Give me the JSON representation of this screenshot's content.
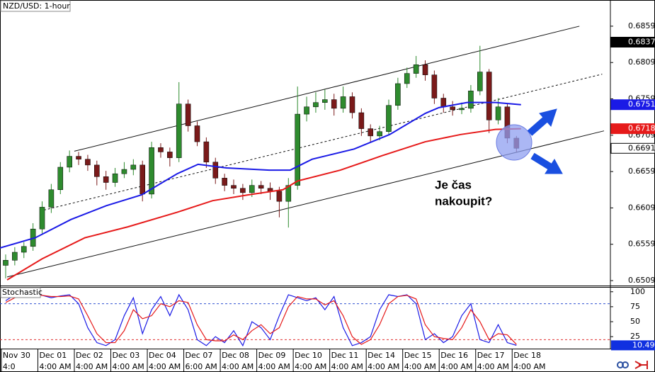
{
  "chart_data": [
    {
      "type": "candlestick",
      "title": "NZD/USD: 1-hour",
      "up_color": "#2e8b2e",
      "down_color": "#7a1a1a",
      "open": [
        0.653,
        0.6537,
        0.6548,
        0.6556,
        0.658,
        0.661,
        0.6634,
        0.6665,
        0.668,
        0.6676,
        0.6668,
        0.6652,
        0.6644,
        0.6656,
        0.6662,
        0.6668,
        0.6628,
        0.6692,
        0.6686,
        0.6678,
        0.6752,
        0.6722,
        0.67,
        0.6672,
        0.665,
        0.664,
        0.6636,
        0.663,
        0.664,
        0.6636,
        0.6632,
        0.6618,
        0.664,
        0.6738,
        0.6748,
        0.6754,
        0.6758,
        0.6746,
        0.6762,
        0.674,
        0.6718,
        0.6708,
        0.6714,
        0.675,
        0.678,
        0.6794,
        0.6806,
        0.6792,
        0.676,
        0.6748,
        0.6744,
        0.6746,
        0.677,
        0.6796,
        0.673,
        0.6748,
        0.6705
      ],
      "high": [
        0.6545,
        0.6555,
        0.6562,
        0.6588,
        0.6618,
        0.6642,
        0.6672,
        0.6688,
        0.6686,
        0.6682,
        0.6674,
        0.666,
        0.6664,
        0.6672,
        0.6676,
        0.6674,
        0.67,
        0.6698,
        0.6692,
        0.6782,
        0.6758,
        0.6728,
        0.6706,
        0.6678,
        0.6656,
        0.6648,
        0.6642,
        0.6648,
        0.6646,
        0.6644,
        0.6638,
        0.665,
        0.6776,
        0.6762,
        0.6768,
        0.6772,
        0.6766,
        0.6776,
        0.6768,
        0.6746,
        0.6724,
        0.6722,
        0.6758,
        0.6788,
        0.6802,
        0.6818,
        0.6812,
        0.6798,
        0.6766,
        0.6756,
        0.6754,
        0.6778,
        0.6832,
        0.68,
        0.676,
        0.6752,
        0.6708
      ],
      "low": [
        0.6512,
        0.653,
        0.654,
        0.655,
        0.6574,
        0.6602,
        0.6628,
        0.6658,
        0.6668,
        0.666,
        0.664,
        0.6634,
        0.6638,
        0.665,
        0.6654,
        0.6618,
        0.6622,
        0.6678,
        0.6666,
        0.6672,
        0.6714,
        0.6694,
        0.6664,
        0.6642,
        0.6632,
        0.6628,
        0.662,
        0.6624,
        0.6628,
        0.662,
        0.6596,
        0.6582,
        0.6634,
        0.6728,
        0.674,
        0.6744,
        0.6736,
        0.674,
        0.6732,
        0.6708,
        0.67,
        0.6702,
        0.671,
        0.6744,
        0.6774,
        0.6788,
        0.6784,
        0.6752,
        0.674,
        0.6736,
        0.6738,
        0.674,
        0.6764,
        0.6712,
        0.6724,
        0.6698,
        0.6686
      ],
      "close": [
        0.6537,
        0.6548,
        0.6556,
        0.658,
        0.661,
        0.6634,
        0.6665,
        0.668,
        0.6676,
        0.6668,
        0.6652,
        0.6644,
        0.6656,
        0.6662,
        0.6668,
        0.6628,
        0.6692,
        0.6686,
        0.6678,
        0.6752,
        0.6722,
        0.67,
        0.6672,
        0.665,
        0.664,
        0.6636,
        0.663,
        0.664,
        0.6636,
        0.6632,
        0.6618,
        0.664,
        0.6738,
        0.6748,
        0.6754,
        0.6758,
        0.6746,
        0.6762,
        0.674,
        0.6718,
        0.6708,
        0.6714,
        0.675,
        0.678,
        0.6794,
        0.6806,
        0.6792,
        0.676,
        0.6748,
        0.6744,
        0.6746,
        0.677,
        0.6796,
        0.673,
        0.6748,
        0.6705,
        0.6691
      ],
      "series": [
        {
          "color": "#1a1ae6",
          "x": [
            -0.62,
            3.26,
            7.15,
            11.03,
            14.91,
            18.8,
            21.1,
            24.2,
            28.9,
            31.2,
            33.6,
            38.2,
            42.1,
            46.0,
            47.5,
            50.6,
            53.7,
            56.5
          ],
          "values": [
            0.6554,
            0.6568,
            0.6593,
            0.6612,
            0.6627,
            0.6656,
            0.6669,
            0.6664,
            0.6661,
            0.6661,
            0.6676,
            0.669,
            0.671,
            0.6739,
            0.6747,
            0.6754,
            0.6754,
            0.6751
          ]
        },
        {
          "color": "#e61a1a",
          "x": [
            0.16,
            4.0,
            8.7,
            13.4,
            18.8,
            22.7,
            26.6,
            30.4,
            32.0,
            36.7,
            41.3,
            46.0,
            49.9,
            53.7,
            56.5
          ],
          "values": [
            0.651,
            0.6539,
            0.6568,
            0.6583,
            0.6603,
            0.6619,
            0.6627,
            0.6634,
            0.6646,
            0.6661,
            0.6681,
            0.67,
            0.671,
            0.6717,
            0.6718
          ]
        }
      ],
      "trendlines": [
        {
          "x": [
            7.53,
            62.9
          ],
          "y": [
            0.6687,
            0.6859
          ],
          "dashed": false
        },
        {
          "x": [
            4.19,
            65.4
          ],
          "y": [
            0.6606,
            0.6793
          ],
          "dashed": true
        },
        {
          "x": [
            0.16,
            65.6
          ],
          "y": [
            0.6514,
            0.6715
          ],
          "dashed": false
        }
      ],
      "xlim": [
        -0.62,
        66.3
      ],
      "ylim": [
        0.65022,
        0.6895
      ],
      "yticks": [
        0.6859,
        0.6809,
        0.6759,
        0.6709,
        0.6659,
        0.6609,
        0.6559,
        0.6509
      ],
      "xticks": [
        {
          "value": -0.47,
          "label": "Nov 30"
        },
        {
          "value": 3.53,
          "label": "Dec 01"
        },
        {
          "value": 7.53,
          "label": "Dec 02"
        },
        {
          "value": 11.53,
          "label": "Dec 03"
        },
        {
          "value": 15.53,
          "label": "Dec 04"
        },
        {
          "value": 19.53,
          "label": "Dec 07"
        },
        {
          "value": 23.53,
          "label": "Dec 08"
        },
        {
          "value": 27.53,
          "label": "Dec 09"
        },
        {
          "value": 31.53,
          "label": "Dec 10"
        },
        {
          "value": 35.53,
          "label": "Dec 11"
        },
        {
          "value": 39.53,
          "label": "Dec 14"
        },
        {
          "value": 43.53,
          "label": "Dec 15"
        },
        {
          "value": 47.53,
          "label": "Dec 16"
        },
        {
          "value": 51.53,
          "label": "Dec 17"
        },
        {
          "value": 55.53,
          "label": "Dec 18"
        }
      ],
      "time_labels": [
        "4:0",
        "4:00 AM",
        "4:00 AM",
        "4:00 AM",
        "4:00 AM",
        "6:00 AM",
        "4:00 AM",
        "4:00 AM",
        "4:00 AM",
        "4:00 AM",
        "4:00 AM",
        "4:00 AM",
        "4:00 AM",
        "4:00 AM",
        "4:00 AM"
      ],
      "price_markers": [
        {
          "value": 0.6837,
          "color": "#000000",
          "text_color": "#ffffff"
        },
        {
          "value": 0.6751,
          "color": "#1a1ae6",
          "text_color": "#ffffff"
        },
        {
          "value": 0.6718,
          "color": "#e61a1a",
          "text_color": "#ffffff"
        },
        {
          "value": 0.6691,
          "color": "#ffffff",
          "text_color": "#000000"
        }
      ],
      "annotation": [
        "Je čas",
        "nakoupit?"
      ]
    },
    {
      "type": "line",
      "title": "Stochastic",
      "series": [
        {
          "color": "#1a1ae6",
          "values": [
            85,
            95,
            92,
            95,
            94,
            90,
            93,
            95,
            80,
            40,
            15,
            10,
            20,
            60,
            90,
            30,
            70,
            92,
            60,
            95,
            70,
            20,
            10,
            25,
            15,
            35,
            10,
            50,
            40,
            20,
            60,
            95,
            90,
            85,
            90,
            70,
            92,
            40,
            10,
            15,
            25,
            70,
            95,
            92,
            95,
            80,
            20,
            30,
            15,
            25,
            60,
            80,
            20,
            15,
            45,
            15,
            10.49
          ]
        },
        {
          "color": "#e61a1a",
          "values": [
            82,
            90,
            93,
            93,
            94,
            92,
            92,
            93,
            88,
            60,
            30,
            15,
            15,
            35,
            70,
            55,
            60,
            80,
            75,
            85,
            82,
            45,
            20,
            18,
            18,
            28,
            20,
            35,
            45,
            30,
            40,
            75,
            92,
            88,
            88,
            78,
            85,
            60,
            25,
            12,
            20,
            45,
            80,
            92,
            94,
            88,
            45,
            25,
            22,
            20,
            40,
            70,
            50,
            20,
            30,
            28,
            12
          ]
        }
      ],
      "ylim": [
        5,
        108
      ],
      "yticks": [
        100,
        75,
        50,
        25
      ],
      "levels": [
        {
          "value": 80,
          "color": "#3050d0"
        },
        {
          "value": 20,
          "color": "#e03030"
        }
      ],
      "last_marker": {
        "value": 10.49,
        "color": "#1030e0"
      }
    }
  ]
}
